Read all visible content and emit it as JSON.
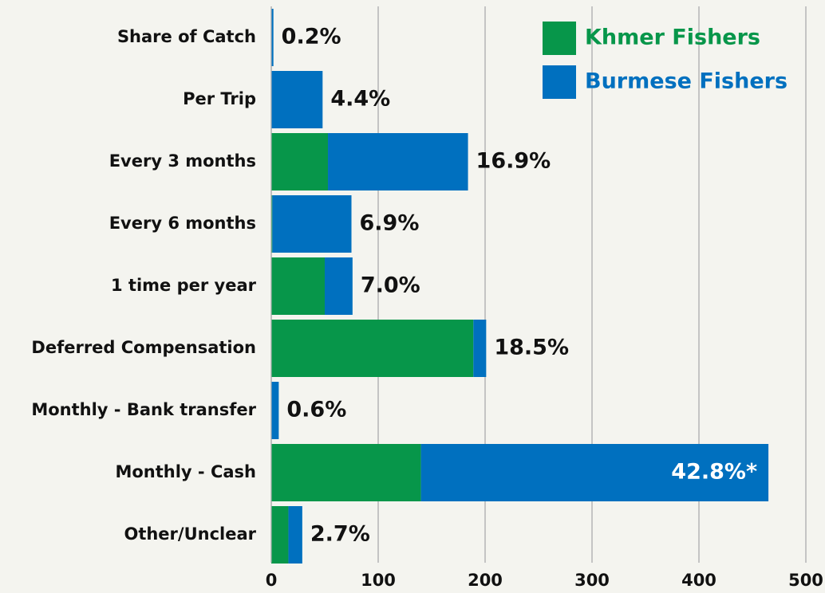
{
  "chart_data": {
    "type": "bar",
    "orientation": "horizontal",
    "stacked": true,
    "categories": [
      "Share of Catch",
      "Per Trip",
      "Every 3 months",
      "Every 6 months",
      "1 time per year",
      "Deferred Compensation",
      "Monthly - Bank transfer",
      "Monthly - Cash",
      "Other/Unclear"
    ],
    "series": [
      {
        "name": "Khmer Fishers",
        "color": "#07964a",
        "values": [
          0,
          0,
          53,
          1,
          50,
          189,
          0,
          140,
          16
        ]
      },
      {
        "name": "Burmese Fishers",
        "color": "#0070bf",
        "values": [
          2,
          48,
          131,
          74,
          26,
          12,
          7,
          325,
          13
        ]
      }
    ],
    "bar_labels": [
      "0.2%",
      "4.4%",
      "16.9%",
      "6.9%",
      "7.0%",
      "18.5%",
      "0.6%",
      "42.8%*",
      "2.7%"
    ],
    "xlim": [
      0,
      500
    ],
    "xticks": [
      0,
      100,
      200,
      300,
      400,
      500
    ],
    "grid": true,
    "legend": "upper right"
  }
}
